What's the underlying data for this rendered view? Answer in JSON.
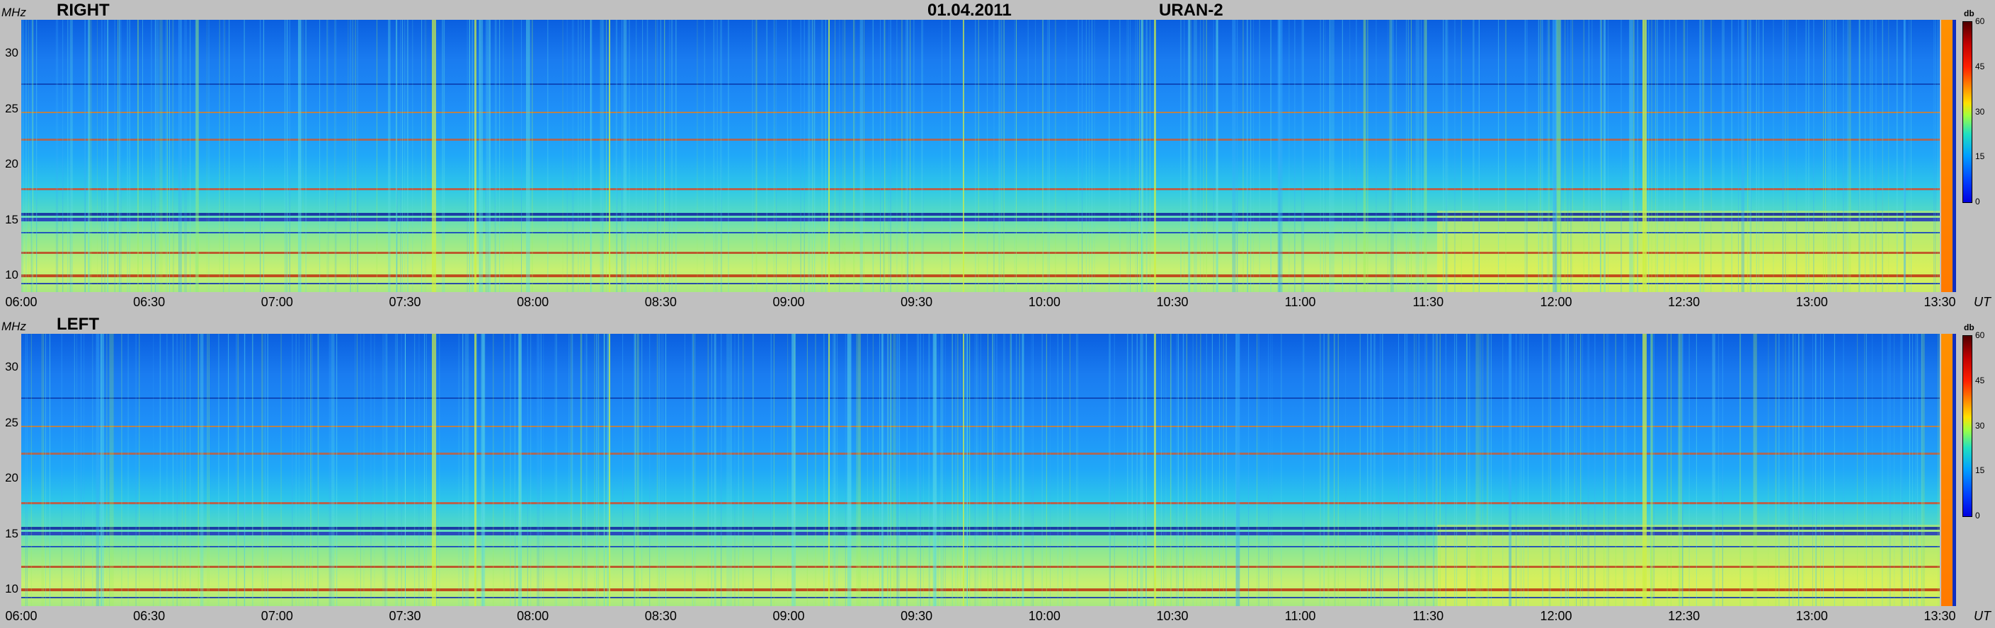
{
  "header": {
    "date": "01.04.2011",
    "station": "URAN-2"
  },
  "chart_data": [
    {
      "type": "heatmap",
      "polarization": "RIGHT",
      "ylabel": "MHz",
      "xlabel": "UT",
      "x_range": [
        "06:00",
        "13:30"
      ],
      "y_range": [
        8.5,
        33
      ],
      "y_ticks": [
        "30",
        "25",
        "20",
        "15",
        "10"
      ],
      "x_ticks": [
        "06:00",
        "06:30",
        "07:00",
        "07:30",
        "08:00",
        "08:30",
        "09:00",
        "09:30",
        "10:00",
        "10:30",
        "11:00",
        "11:30",
        "12:00",
        "12:30",
        "13:00",
        "13:30"
      ],
      "colorbar": {
        "unit": "db",
        "range": [
          0,
          60
        ],
        "ticks": [
          "60",
          "45",
          "30",
          "15",
          "0"
        ]
      }
    },
    {
      "type": "heatmap",
      "polarization": "LEFT",
      "ylabel": "MHz",
      "xlabel": "UT",
      "x_range": [
        "06:00",
        "13:30"
      ],
      "y_range": [
        8.5,
        33
      ],
      "y_ticks": [
        "30",
        "25",
        "20",
        "15",
        "10"
      ],
      "x_ticks": [
        "06:00",
        "06:30",
        "07:00",
        "07:30",
        "08:00",
        "08:30",
        "09:00",
        "09:30",
        "10:00",
        "10:30",
        "11:00",
        "11:30",
        "12:00",
        "12:30",
        "13:00",
        "13:30"
      ],
      "colorbar": {
        "unit": "db",
        "range": [
          0,
          60
        ],
        "ticks": [
          "60",
          "45",
          "30",
          "15",
          "0"
        ]
      }
    }
  ]
}
